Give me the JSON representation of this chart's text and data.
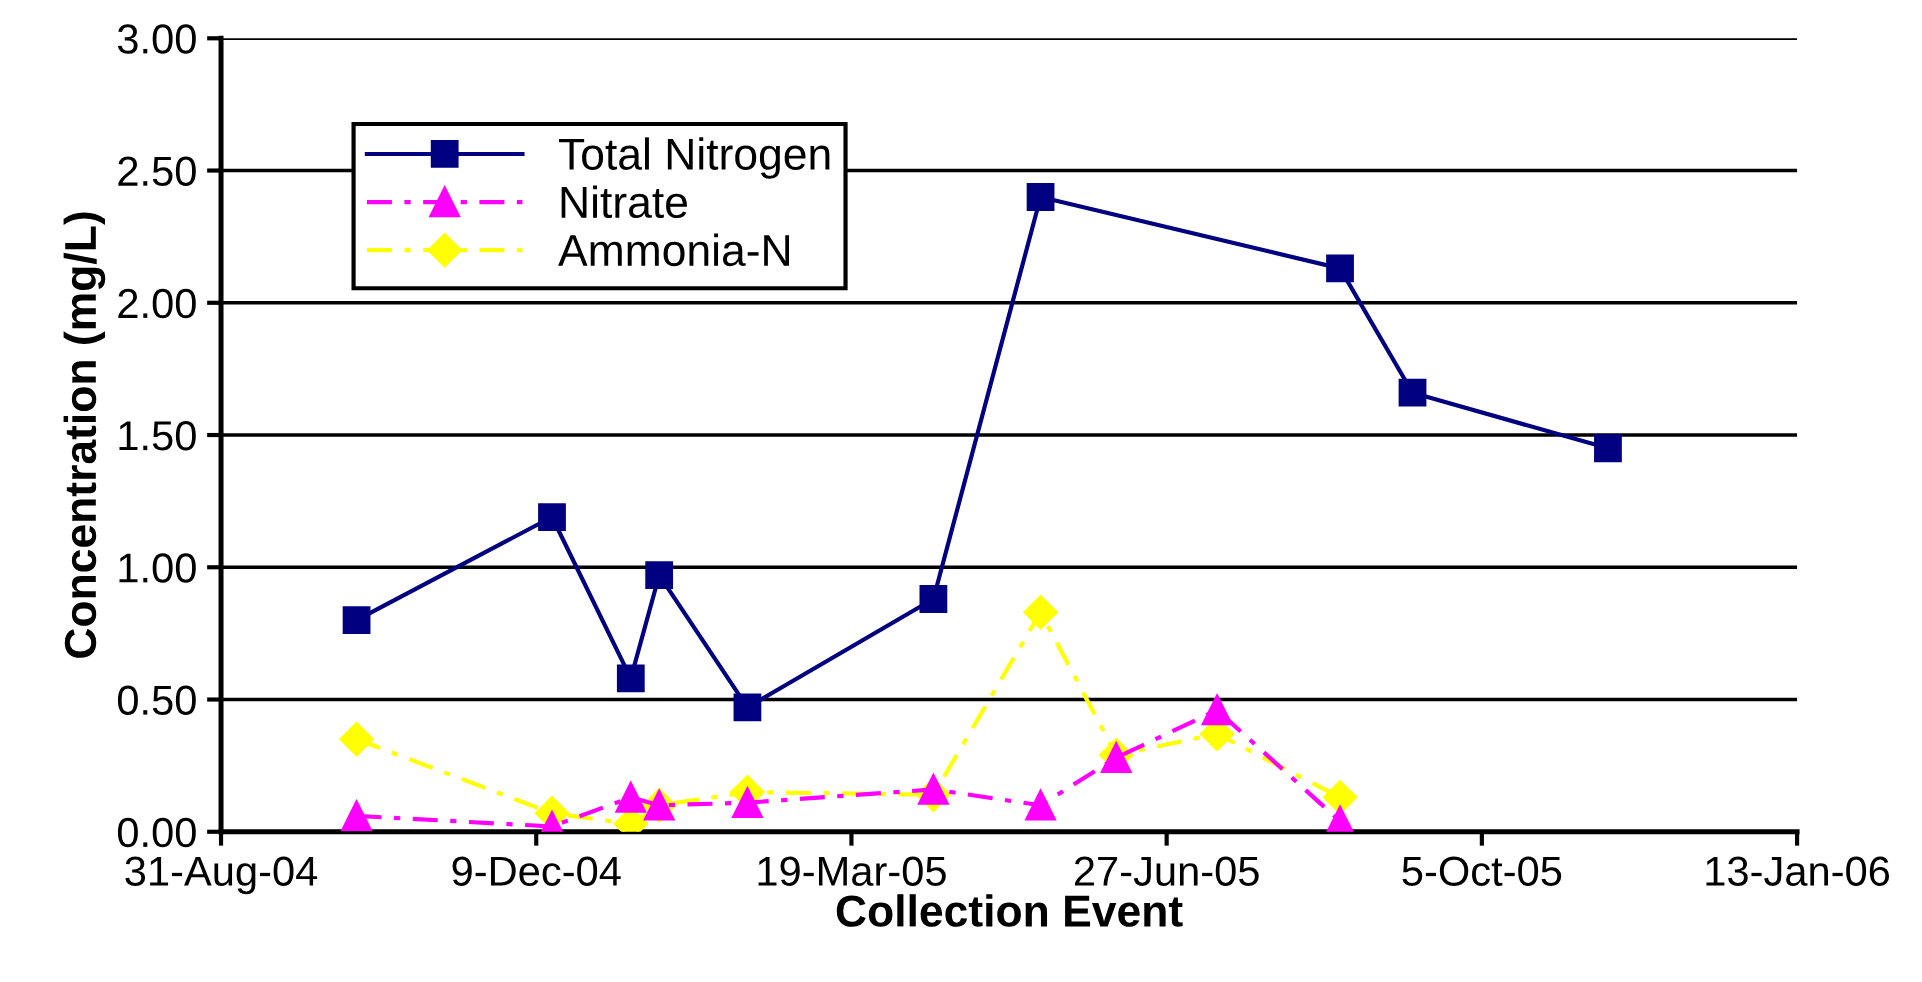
{
  "chart_data": {
    "type": "line",
    "xlabel": "Collection Event",
    "ylabel": "Concentration (mg/L)",
    "xlim": [
      "2004-08-31",
      "2006-01-13"
    ],
    "xticks": [
      {
        "value": "2004-08-31",
        "label": "31-Aug-04"
      },
      {
        "value": "2004-12-09",
        "label": "9-Dec-04"
      },
      {
        "value": "2005-03-19",
        "label": "19-Mar-05"
      },
      {
        "value": "2005-06-27",
        "label": "27-Jun-05"
      },
      {
        "value": "2005-10-05",
        "label": "5-Oct-05"
      },
      {
        "value": "2006-01-13",
        "label": "13-Jan-06"
      }
    ],
    "ylim": [
      0,
      3
    ],
    "yticks": [
      {
        "value": 0,
        "label": "0.00"
      },
      {
        "value": 0.5,
        "label": "0.50"
      },
      {
        "value": 1,
        "label": "1.00"
      },
      {
        "value": 1.5,
        "label": "1.50"
      },
      {
        "value": 2,
        "label": "2.00"
      },
      {
        "value": 2.5,
        "label": "2.50"
      },
      {
        "value": 3,
        "label": "3.00"
      }
    ],
    "grid": "y",
    "legend": "top left",
    "series": [
      {
        "name": "Total Nitrogen",
        "color": "#000080",
        "marker": "square",
        "line_style": "solid",
        "x": [
          "2004-10-13",
          "2004-12-14",
          "2005-01-08",
          "2005-01-17",
          "2005-02-14",
          "2005-04-14",
          "2005-05-18",
          "2005-08-21",
          "2005-09-13",
          "2005-11-14"
        ],
        "values": [
          0.8,
          1.19,
          0.58,
          0.97,
          0.47,
          0.88,
          2.4,
          2.13,
          1.66,
          1.45
        ]
      },
      {
        "name": "Nitrate",
        "color": "#ff00ff",
        "marker": "triangle",
        "line_style": "dashed",
        "x": [
          "2004-10-13",
          "2004-12-14",
          "2005-01-08",
          "2005-01-17",
          "2005-02-14",
          "2005-04-14",
          "2005-05-18",
          "2005-06-11",
          "2005-07-13",
          "2005-08-21"
        ],
        "values": [
          0.06,
          0.02,
          0.13,
          0.1,
          0.11,
          0.16,
          0.1,
          0.28,
          0.46,
          0.04
        ]
      },
      {
        "name": "Ammonia-N",
        "color": "#ffff00",
        "marker": "diamond",
        "line_style": "dashed",
        "x": [
          "2004-10-13",
          "2004-12-14",
          "2005-01-08",
          "2005-01-17",
          "2005-02-14",
          "2005-04-14",
          "2005-05-18",
          "2005-06-11",
          "2005-07-13",
          "2005-08-21"
        ],
        "values": [
          0.35,
          0.07,
          0.03,
          0.1,
          0.15,
          0.14,
          0.83,
          0.29,
          0.37,
          0.13
        ]
      }
    ]
  }
}
